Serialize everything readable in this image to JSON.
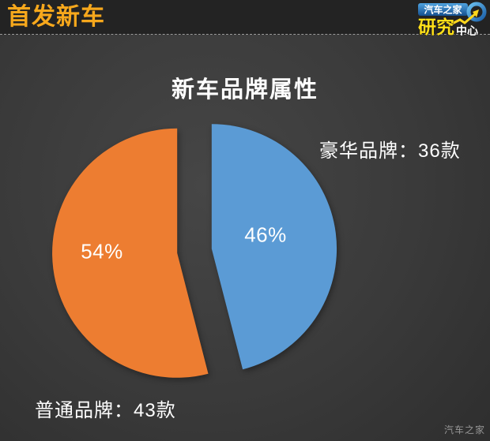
{
  "header": {
    "title": "首发新车",
    "logo": {
      "brand": "汽车之家",
      "big": "研究",
      "small": "中心",
      "bar_color": "#1F6FC0",
      "big_color": "#FFE01A"
    }
  },
  "chart_data": {
    "type": "pie",
    "title": "新车品牌属性",
    "exploded": true,
    "start_angle_deg": 0,
    "legend_position": "none",
    "slices": [
      {
        "id": "luxury",
        "label": "豪华品牌",
        "models": 36,
        "percent_value": 46,
        "percent": "46%",
        "callout": "豪华品牌：36款",
        "color": "#5B9BD5"
      },
      {
        "id": "ordinary",
        "label": "普通品牌",
        "models": 43,
        "percent_value": 54,
        "percent": "54%",
        "callout": "普通品牌：43款",
        "color": "#ED7D31"
      }
    ]
  },
  "watermark": "汽车之家"
}
